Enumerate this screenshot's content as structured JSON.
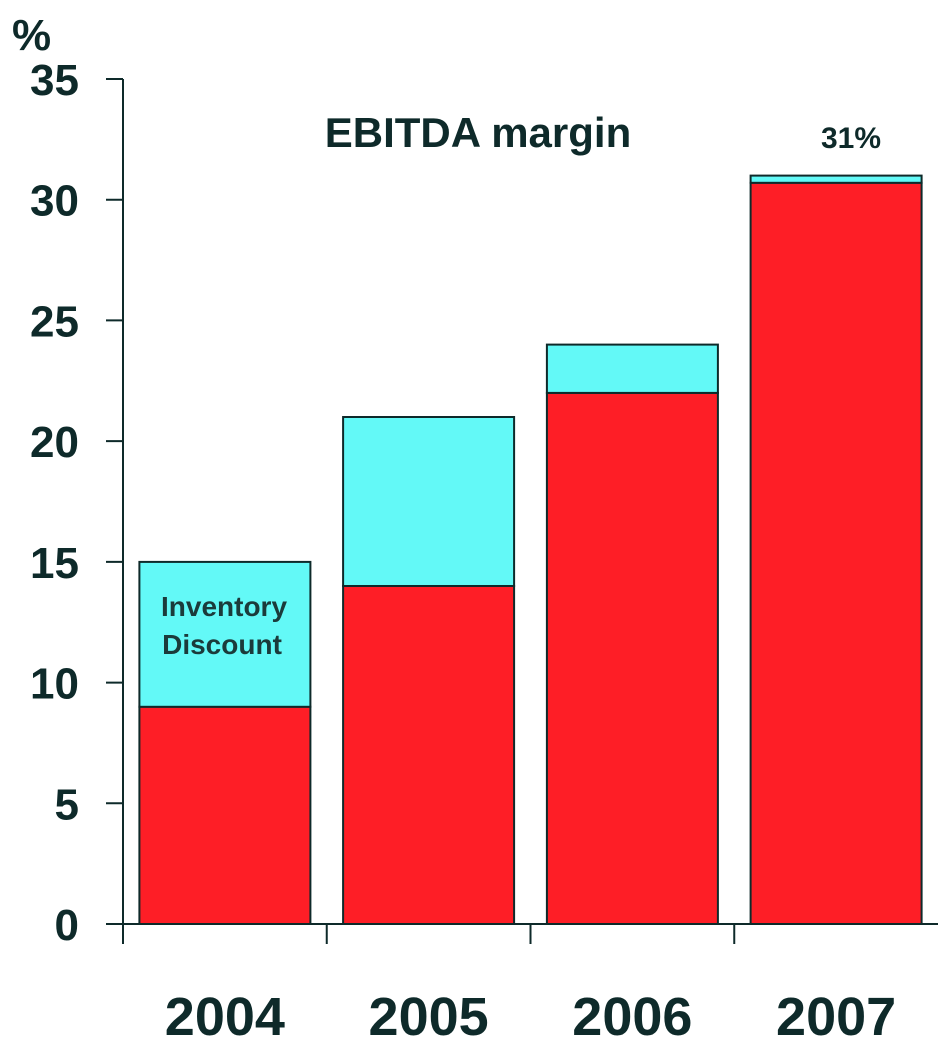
{
  "chart_data": {
    "type": "bar",
    "stacked": true,
    "title": "EBITDA margin",
    "unit_label": "%",
    "categories": [
      "2004",
      "2005",
      "2006",
      "2007"
    ],
    "series": [
      {
        "values": [
          9,
          14,
          22,
          30.7
        ],
        "color": "#fe1e26"
      },
      {
        "values": [
          6,
          7,
          2,
          0.3
        ],
        "color": "#63f9f7"
      }
    ],
    "totals": [
      15,
      21,
      24,
      31
    ],
    "ylim": [
      0,
      35
    ],
    "yticks": [
      "0",
      "5",
      "10",
      "15",
      "20",
      "25",
      "30",
      "35"
    ],
    "annotations": {
      "inventory_discount_line1": "Inventory",
      "inventory_discount_line2": "Discount",
      "total_2007": "31%"
    },
    "grid": false,
    "axis_color": "#0e2a2a"
  }
}
